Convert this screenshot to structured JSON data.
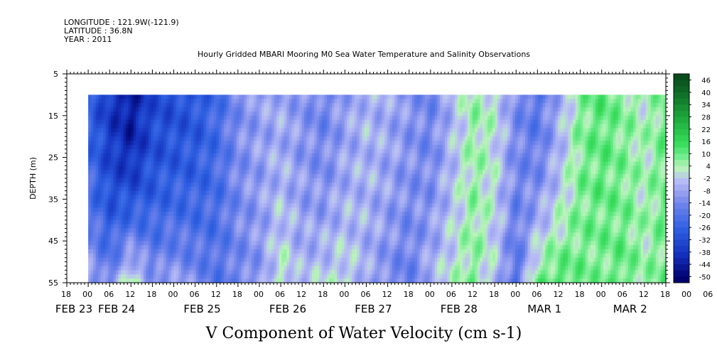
{
  "header": {
    "longitude": "LONGITUDE : 121.9W(-121.9)",
    "latitude": "LATITUDE : 36.8N",
    "year": "YEAR : 2011"
  },
  "chart_data": {
    "type": "heatmap",
    "title": "Hourly Gridded MBARI Mooring M0 Sea Water Temperature and Salinity Observations",
    "xlabel": "V Component of Water Velocity (cm s-1)",
    "ylabel": "DEPTH (m)",
    "y_axis": {
      "range": [
        5,
        55
      ],
      "inverted": true,
      "tick_labels": [
        "5",
        "15",
        "25",
        "35",
        "45",
        "55"
      ],
      "tick_values": [
        5,
        15,
        25,
        35,
        45,
        55
      ],
      "data_range": [
        10,
        55
      ]
    },
    "x_axis": {
      "hour_labels": [
        "18",
        "00",
        "06",
        "12",
        "18",
        "00",
        "06",
        "12",
        "18",
        "00",
        "06",
        "12",
        "18",
        "00",
        "06",
        "12",
        "18",
        "00",
        "06",
        "12",
        "18",
        "00",
        "06",
        "12",
        "18",
        "00",
        "06",
        "12",
        "18",
        "00",
        "06",
        "12",
        "18"
      ],
      "day_labels": [
        "FEB 23",
        "FEB 24",
        "FEB 25",
        "FEB 26",
        "FEB 27",
        "FEB 28",
        "MAR  1",
        "MAR  2"
      ],
      "start": "2011-02-23T18:00",
      "end": "2011-03-02T18:00",
      "hours_per_label": 6,
      "data_start": "2011-02-24T00:00",
      "data_end": "2011-03-02T18:00"
    },
    "colorbar": {
      "labels": [
        "46",
        "40",
        "34",
        "28",
        "22",
        "16",
        "10",
        "4",
        "-2",
        "-8",
        "-14",
        "-20",
        "-26",
        "-32",
        "-38",
        "-44",
        "-50"
      ],
      "min": -50,
      "max": 50,
      "step": 3
    },
    "field_profile": {
      "description_hours": [
        0,
        6,
        12,
        18,
        24,
        30,
        36,
        42,
        48,
        54,
        60,
        66,
        72,
        78,
        84,
        90,
        96,
        102,
        108,
        114,
        120,
        126,
        132,
        138,
        144,
        150,
        156,
        162
      ],
      "upper_values": [
        -24,
        -36,
        -44,
        -32,
        -30,
        -28,
        -22,
        -12,
        -8,
        -6,
        -10,
        -14,
        -8,
        -4,
        -6,
        -10,
        -14,
        -4,
        6,
        2,
        -12,
        -18,
        -6,
        8,
        12,
        8,
        4,
        10
      ],
      "lower_values": [
        -6,
        -14,
        6,
        -10,
        -8,
        -12,
        -18,
        -14,
        -10,
        4,
        -4,
        0,
        2,
        -6,
        -12,
        -16,
        -4,
        2,
        8,
        -2,
        -20,
        10,
        14,
        10,
        8,
        12,
        6,
        10
      ]
    },
    "colors": {
      "negative_deep": "#000080",
      "negative_mid": "#2a5ad8",
      "negative_light": "#b4b8f4",
      "positive_light": "#b8f4b4",
      "positive_mid": "#30e050",
      "positive_deep": "#0a4a1a"
    }
  }
}
